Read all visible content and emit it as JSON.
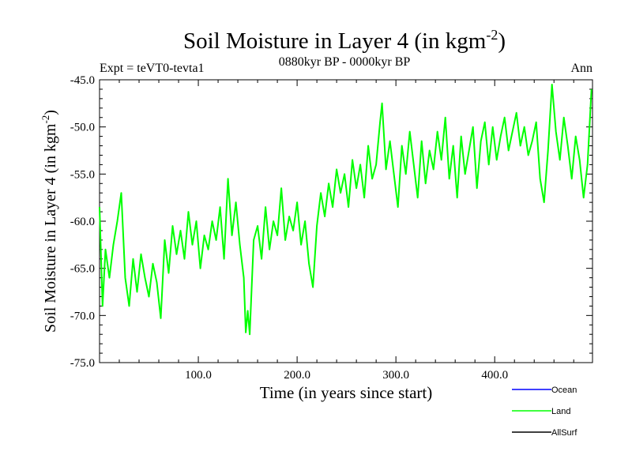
{
  "chart_data": {
    "type": "line",
    "title": "Soil Moisture in Layer 4 (in kgm",
    "title_superscript": "-2",
    "title_close": ")",
    "subtitle_left": "Expt = teVT0-tevta1",
    "subtitle_center": "0880kyr BP - 0000kyr BP",
    "subtitle_right": "Ann",
    "xlabel": "Time (in years since start)",
    "ylabel": "Soil Moisture in Layer 4 (in kgm",
    "ylabel_superscript": "-2",
    "ylabel_close": ")",
    "xlim": [
      0,
      499
    ],
    "ylim": [
      -75.0,
      -45.0
    ],
    "x_ticks": [
      100,
      200,
      300,
      400
    ],
    "x_tick_labels": [
      "100.0",
      "200.0",
      "300.0",
      "400.0"
    ],
    "y_ticks": [
      -75,
      -70,
      -65,
      -60,
      -55,
      -50,
      -45
    ],
    "y_tick_labels": [
      "-75.0",
      "-70.0",
      "-65.0",
      "-60.0",
      "-55.0",
      "-50.0",
      "-45.0"
    ],
    "legend": [
      {
        "name": "Ocean",
        "color": "#0000ff"
      },
      {
        "name": "Land",
        "color": "#00ff00"
      },
      {
        "name": "AllSurf",
        "color": "#000000"
      }
    ],
    "series": [
      {
        "name": "Land",
        "color": "#00ff00",
        "x": [
          0,
          3,
          6,
          10,
          14,
          18,
          22,
          26,
          30,
          34,
          38,
          42,
          46,
          50,
          54,
          58,
          62,
          66,
          70,
          74,
          78,
          82,
          86,
          90,
          94,
          98,
          102,
          106,
          110,
          114,
          118,
          122,
          126,
          130,
          134,
          138,
          142,
          146,
          148,
          150,
          152,
          156,
          160,
          164,
          168,
          172,
          176,
          180,
          184,
          188,
          192,
          196,
          200,
          204,
          208,
          212,
          216,
          220,
          224,
          228,
          232,
          236,
          240,
          244,
          248,
          252,
          256,
          260,
          264,
          268,
          272,
          276,
          280,
          284,
          286,
          290,
          294,
          298,
          302,
          306,
          310,
          314,
          318,
          322,
          326,
          330,
          334,
          338,
          342,
          346,
          350,
          354,
          358,
          362,
          366,
          370,
          374,
          378,
          382,
          386,
          390,
          394,
          398,
          402,
          406,
          410,
          414,
          418,
          422,
          426,
          430,
          434,
          438,
          442,
          446,
          450,
          454,
          458,
          462,
          466,
          470,
          474,
          478,
          482,
          486,
          490,
          494,
          498
        ],
        "values": [
          -58.5,
          -69.0,
          -63.0,
          -66.0,
          -62.5,
          -60.0,
          -57.0,
          -66.0,
          -69.0,
          -64.0,
          -67.5,
          -63.5,
          -66.0,
          -68.0,
          -64.5,
          -66.5,
          -70.3,
          -62.0,
          -65.5,
          -60.5,
          -63.5,
          -61.0,
          -64.0,
          -59.0,
          -62.5,
          -60.0,
          -65.0,
          -61.5,
          -63.0,
          -60.0,
          -62.0,
          -58.5,
          -64.0,
          -55.5,
          -61.5,
          -58.0,
          -62.5,
          -66.0,
          -71.8,
          -69.5,
          -72.0,
          -62.0,
          -60.5,
          -64.0,
          -58.5,
          -63.0,
          -60.0,
          -61.5,
          -56.5,
          -62.0,
          -59.5,
          -61.0,
          -58.0,
          -62.5,
          -60.0,
          -64.5,
          -67.0,
          -60.5,
          -57.0,
          -59.5,
          -56.0,
          -58.5,
          -54.5,
          -57.0,
          -55.0,
          -58.5,
          -53.5,
          -56.5,
          -54.0,
          -57.5,
          -52.0,
          -55.5,
          -54.0,
          -49.5,
          -47.5,
          -54.5,
          -51.5,
          -55.0,
          -58.5,
          -52.0,
          -55.0,
          -50.5,
          -54.0,
          -57.5,
          -51.5,
          -56.0,
          -52.5,
          -54.5,
          -50.5,
          -53.5,
          -49.0,
          -55.5,
          -52.0,
          -57.5,
          -51.0,
          -55.0,
          -52.5,
          -50.0,
          -56.5,
          -51.5,
          -49.5,
          -54.0,
          -50.0,
          -53.5,
          -51.0,
          -49.0,
          -52.5,
          -50.5,
          -48.5,
          -52.0,
          -50.0,
          -53.0,
          -51.5,
          -49.5,
          -55.5,
          -58.0,
          -52.5,
          -45.5,
          -50.5,
          -53.5,
          -49.0,
          -52.0,
          -55.5,
          -51.0,
          -53.5,
          -57.5,
          -54.0,
          -46.0
        ]
      },
      {
        "name": "Ocean",
        "color": "#0000ff",
        "x": [],
        "values": []
      },
      {
        "name": "AllSurf",
        "color": "#000000",
        "x": [],
        "values": []
      }
    ]
  }
}
